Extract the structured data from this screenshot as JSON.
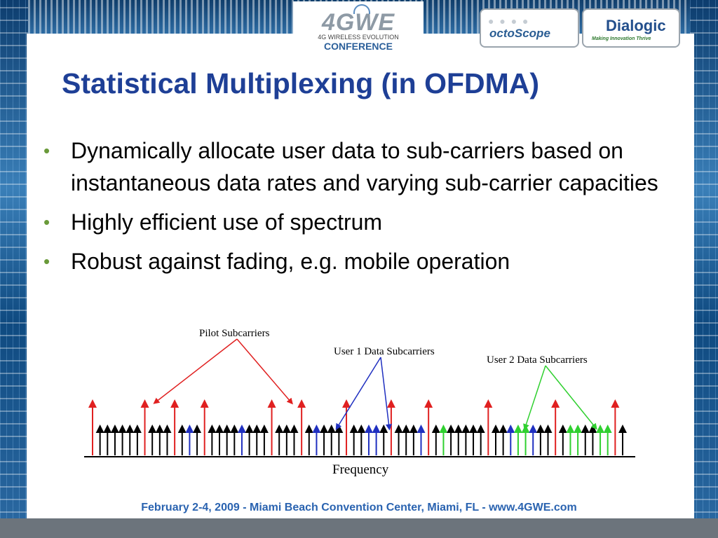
{
  "header": {
    "logo_4gwe": "4GWE",
    "logo_4gwe_sub": "4G WIRELESS EVOLUTION",
    "logo_4gwe_conf": "CONFERENCE",
    "logo_octoscope": "octoScope",
    "logo_dialogic": "Dialogic",
    "logo_dialogic_tag": "Making Innovation Thrive"
  },
  "slide": {
    "title": "Statistical Multiplexing (in OFDMA)",
    "bullets": [
      "Dynamically allocate user data to sub-carriers based on instantaneous data rates and varying sub-carrier capacities",
      "Highly efficient use of spectrum",
      "Robust against fading, e.g. mobile operation"
    ]
  },
  "figure": {
    "labels": {
      "pilot": "Pilot Subcarriers",
      "user1": "User 1 Data Subcarriers",
      "user2": "User 2 Data Subcarriers",
      "axis": "Frequency"
    },
    "colors": {
      "pilot": "#e02020",
      "user1": "#2030c0",
      "user2": "#30d030",
      "other": "#000000"
    },
    "subcarriers": [
      "p",
      "o",
      "o",
      "o",
      "o",
      "o",
      "o",
      "p",
      "o",
      "o",
      "o",
      "p",
      "o",
      "u",
      "o",
      "p",
      "o",
      "o",
      "o",
      "o",
      "u",
      "o",
      "o",
      "o",
      "p",
      "o",
      "o",
      "o",
      "p",
      "o",
      "u",
      "o",
      "o",
      "o",
      "p",
      "o",
      "o",
      "u",
      "u",
      "o",
      "p",
      "o",
      "o",
      "o",
      "u",
      "p",
      "o",
      "g",
      "o",
      "o",
      "o",
      "o",
      "o",
      "p",
      "o",
      "o",
      "u",
      "g",
      "g",
      "u",
      "o",
      "o",
      "p",
      "o",
      "g",
      "g",
      "o",
      "o",
      "g",
      "g",
      "p",
      "o"
    ]
  },
  "footer": {
    "text": "February 2-4, 2009  -  Miami Beach Convention Center, Miami, FL  -  www.4GWE.com"
  }
}
